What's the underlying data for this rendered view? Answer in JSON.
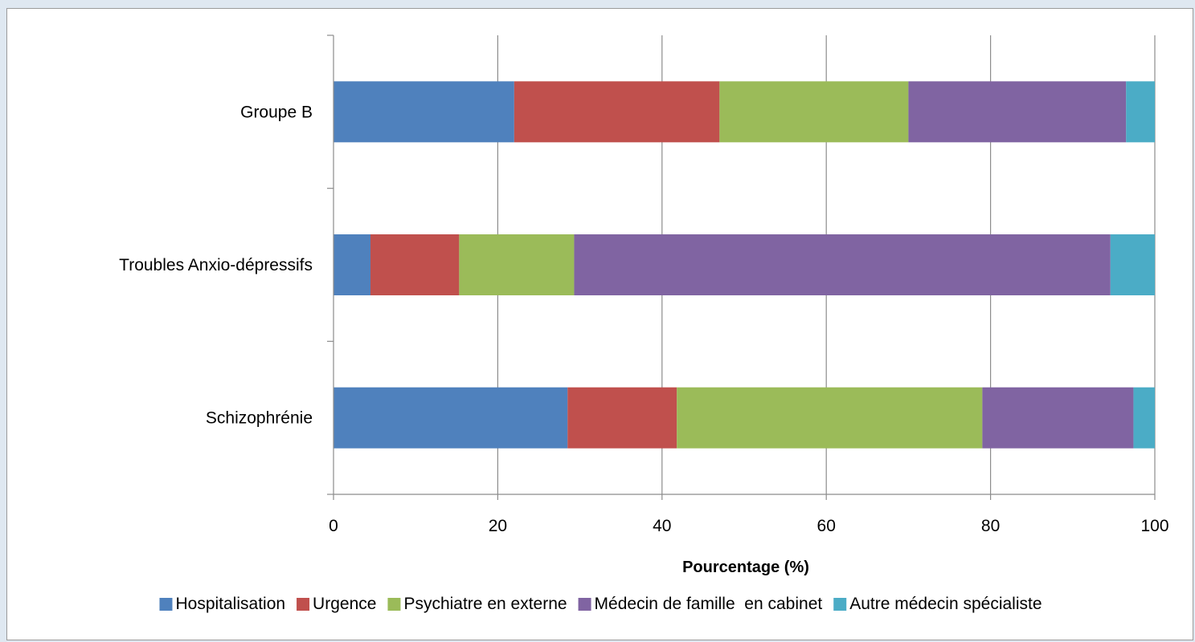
{
  "chart_data": {
    "type": "bar",
    "orientation": "horizontal",
    "stacked": true,
    "categories": [
      "Groupe B",
      "Troubles Anxio-dépressifs",
      "Schizophrénie"
    ],
    "series": [
      {
        "name": "Hospitalisation",
        "color": "#4f81bd",
        "values": [
          22.0,
          4.5,
          28.5
        ]
      },
      {
        "name": "Urgence",
        "color": "#c0504d",
        "values": [
          25.0,
          10.8,
          13.3
        ]
      },
      {
        "name": "Psychiatre en externe",
        "color": "#9bbb59",
        "values": [
          23.0,
          14.0,
          37.2
        ]
      },
      {
        "name": "Médecin de famille  en cabinet",
        "color": "#8064a2",
        "values": [
          26.5,
          65.3,
          18.4
        ]
      },
      {
        "name": "Autre médecin spécialiste",
        "color": "#4bacc6",
        "values": [
          3.5,
          5.4,
          2.6
        ]
      }
    ],
    "xlabel": "Pourcentage (%)",
    "ylabel": "",
    "xlim": [
      0,
      100
    ],
    "xticks": [
      0,
      20,
      40,
      60,
      80,
      100
    ],
    "grid": "vertical",
    "legend": "bottom"
  }
}
